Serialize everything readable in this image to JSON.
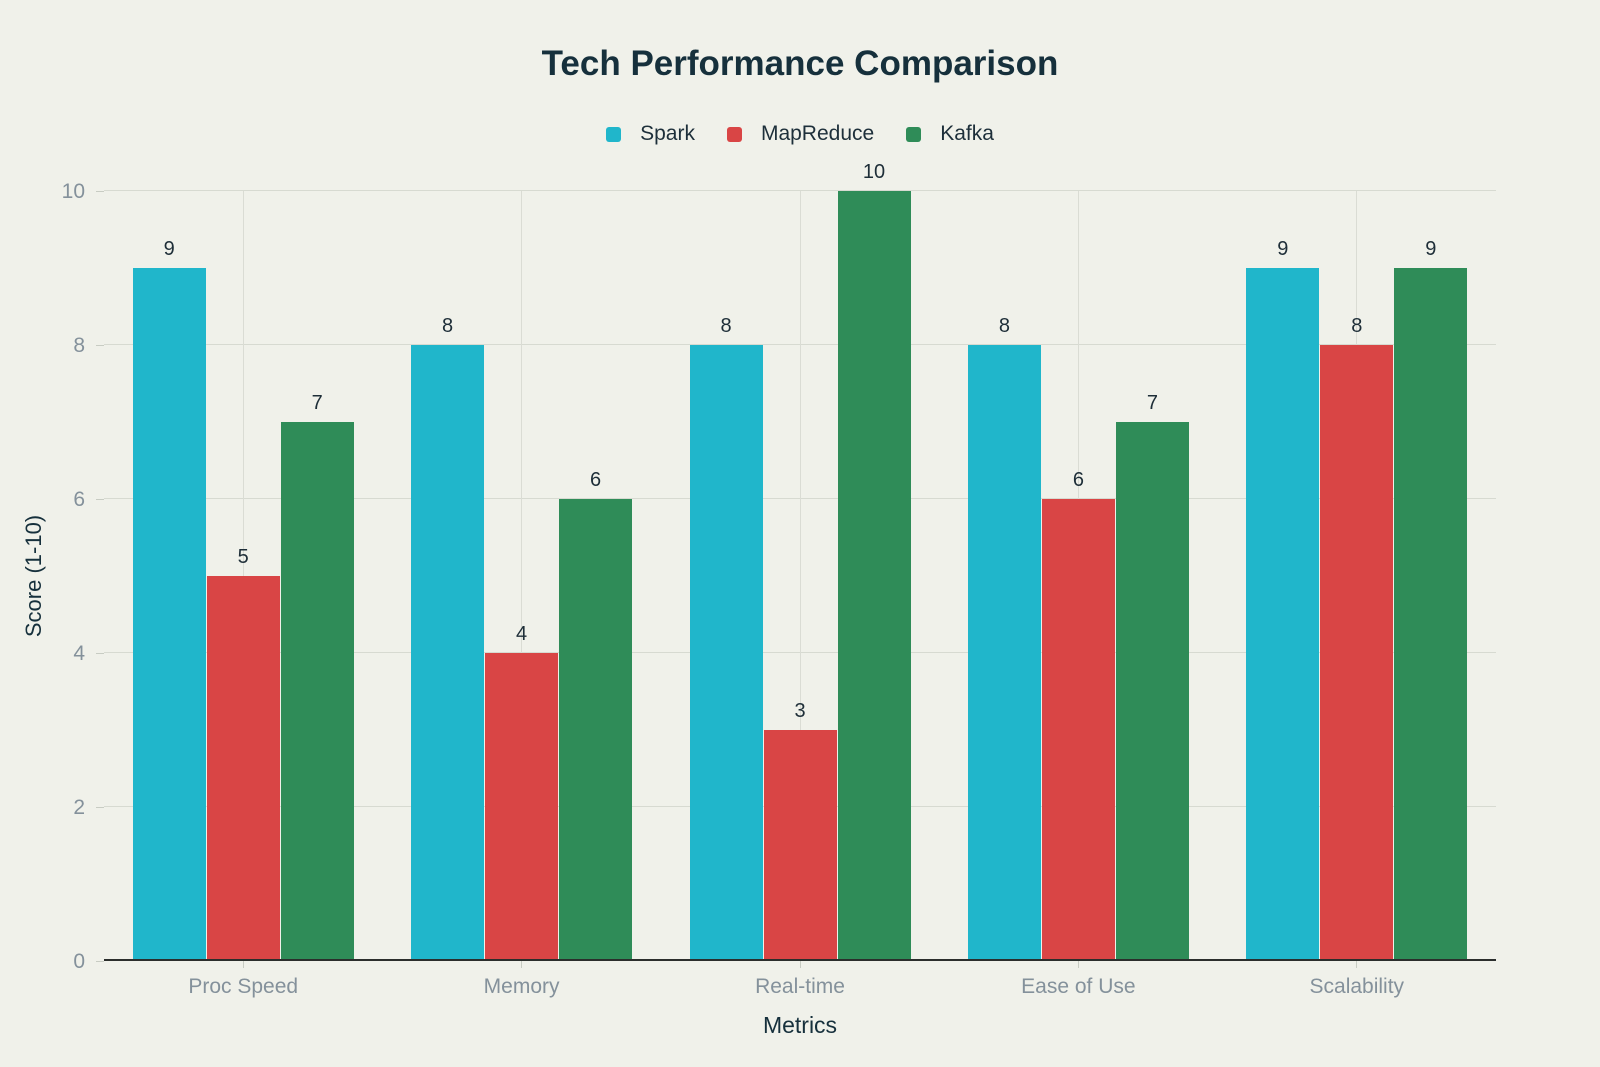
{
  "chart_data": {
    "type": "bar",
    "title": "Tech Performance Comparison",
    "xlabel": "Metrics",
    "ylabel": "Score (1-10)",
    "categories": [
      "Proc Speed",
      "Memory",
      "Real-time",
      "Ease of Use",
      "Scalability"
    ],
    "series": [
      {
        "name": "Spark",
        "color": "#20b6cb",
        "values": [
          9,
          8,
          8,
          8,
          9
        ]
      },
      {
        "name": "MapReduce",
        "color": "#d94545",
        "values": [
          5,
          4,
          3,
          6,
          8
        ]
      },
      {
        "name": "Kafka",
        "color": "#2f8c58",
        "values": [
          7,
          6,
          10,
          7,
          9
        ]
      }
    ],
    "ylim": [
      0,
      10
    ],
    "yticks": [
      0,
      2,
      4,
      6,
      8,
      10
    ],
    "grid": true,
    "legend_position": "top",
    "value_labels_shown": true
  },
  "colors": {
    "background": "#f0f1ea",
    "title_text": "#16303c",
    "axis_title_text": "#16303c",
    "tick_label_gray": "#84919b",
    "value_label_text": "#1e2e38",
    "gridline": "#d7dad1",
    "axis_line": "#2b2e2c"
  }
}
